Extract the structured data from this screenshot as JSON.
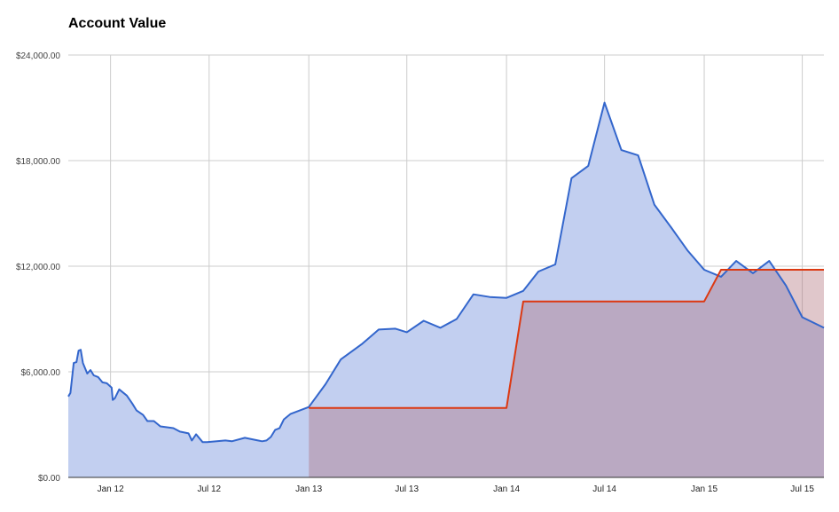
{
  "chart_data": {
    "type": "area",
    "title": "Account Value",
    "xlabel": "",
    "ylabel": "",
    "x_range": [
      "2011-10-15",
      "2015-08-10"
    ],
    "ylim": [
      0,
      24000
    ],
    "y_ticks": [
      0,
      6000,
      12000,
      18000,
      24000
    ],
    "y_tick_labels": [
      "$0.00",
      "$6,000.00",
      "$12,000.00",
      "$18,000.00",
      "$24,000.00"
    ],
    "x_ticks": [
      "2012-01-01",
      "2012-07-01",
      "2013-01-01",
      "2013-07-01",
      "2014-01-01",
      "2014-07-01",
      "2015-01-01",
      "2015-07-01"
    ],
    "x_tick_labels": [
      "Jan 12",
      "Jul 12",
      "Jan 13",
      "Jul 13",
      "Jan 14",
      "Jul 14",
      "Jan 15",
      "Jul 15"
    ],
    "grid": true,
    "legend": "none",
    "series": [
      {
        "color": "#3366cc",
        "fill": "#c2cff0",
        "points": [
          [
            "2011-10-15",
            4600
          ],
          [
            "2011-10-19",
            4800
          ],
          [
            "2011-10-25",
            6500
          ],
          [
            "2011-10-30",
            6550
          ],
          [
            "2011-11-03",
            7200
          ],
          [
            "2011-11-07",
            7250
          ],
          [
            "2011-11-11",
            6500
          ],
          [
            "2011-11-19",
            5900
          ],
          [
            "2011-11-25",
            6100
          ],
          [
            "2011-12-01",
            5800
          ],
          [
            "2011-12-09",
            5700
          ],
          [
            "2011-12-17",
            5400
          ],
          [
            "2011-12-25",
            5350
          ],
          [
            "2012-01-03",
            5100
          ],
          [
            "2012-01-05",
            4400
          ],
          [
            "2012-01-09",
            4500
          ],
          [
            "2012-01-17",
            5000
          ],
          [
            "2012-01-31",
            4650
          ],
          [
            "2012-02-10",
            4200
          ],
          [
            "2012-02-18",
            3800
          ],
          [
            "2012-03-01",
            3550
          ],
          [
            "2012-03-09",
            3200
          ],
          [
            "2012-03-21",
            3200
          ],
          [
            "2012-04-02",
            2900
          ],
          [
            "2012-04-14",
            2850
          ],
          [
            "2012-04-26",
            2800
          ],
          [
            "2012-05-08",
            2600
          ],
          [
            "2012-05-24",
            2500
          ],
          [
            "2012-05-30",
            2100
          ],
          [
            "2012-06-07",
            2450
          ],
          [
            "2012-06-19",
            2000
          ],
          [
            "2012-06-27",
            2000
          ],
          [
            "2012-07-31",
            2100
          ],
          [
            "2012-08-12",
            2050
          ],
          [
            "2012-09-05",
            2250
          ],
          [
            "2012-09-29",
            2100
          ],
          [
            "2012-10-07",
            2050
          ],
          [
            "2012-10-15",
            2100
          ],
          [
            "2012-10-23",
            2300
          ],
          [
            "2012-10-31",
            2700
          ],
          [
            "2012-11-08",
            2800
          ],
          [
            "2012-11-16",
            3300
          ],
          [
            "2012-11-28",
            3600
          ],
          [
            "2013-01-01",
            4000
          ],
          [
            "2013-02-01",
            5300
          ],
          [
            "2013-03-01",
            6700
          ],
          [
            "2013-04-10",
            7600
          ],
          [
            "2013-05-10",
            8400
          ],
          [
            "2013-06-10",
            8450
          ],
          [
            "2013-07-01",
            8250
          ],
          [
            "2013-08-01",
            8900
          ],
          [
            "2013-09-01",
            8500
          ],
          [
            "2013-10-01",
            9000
          ],
          [
            "2013-11-01",
            10400
          ],
          [
            "2013-12-01",
            10250
          ],
          [
            "2014-01-01",
            10200
          ],
          [
            "2014-02-01",
            10600
          ],
          [
            "2014-03-01",
            11700
          ],
          [
            "2014-04-01",
            12100
          ],
          [
            "2014-05-01",
            17000
          ],
          [
            "2014-06-01",
            17700
          ],
          [
            "2014-07-01",
            21300
          ],
          [
            "2014-08-01",
            18600
          ],
          [
            "2014-09-01",
            18300
          ],
          [
            "2014-10-01",
            15500
          ],
          [
            "2014-11-01",
            14200
          ],
          [
            "2014-12-01",
            12900
          ],
          [
            "2015-01-01",
            11800
          ],
          [
            "2015-02-01",
            11400
          ],
          [
            "2015-03-01",
            12300
          ],
          [
            "2015-04-01",
            11600
          ],
          [
            "2015-05-01",
            12300
          ],
          [
            "2015-06-01",
            10900
          ],
          [
            "2015-07-01",
            9100
          ],
          [
            "2015-08-10",
            8500
          ]
        ]
      },
      {
        "color": "#dc3912",
        "fill": "#ad6b77",
        "fill_opacity": 0.38,
        "points": [
          [
            "2013-01-01",
            3950
          ],
          [
            "2014-01-01",
            3950
          ],
          [
            "2014-02-01",
            10000
          ],
          [
            "2015-01-01",
            10000
          ],
          [
            "2015-02-01",
            11800
          ],
          [
            "2015-08-10",
            11800
          ]
        ]
      }
    ]
  }
}
